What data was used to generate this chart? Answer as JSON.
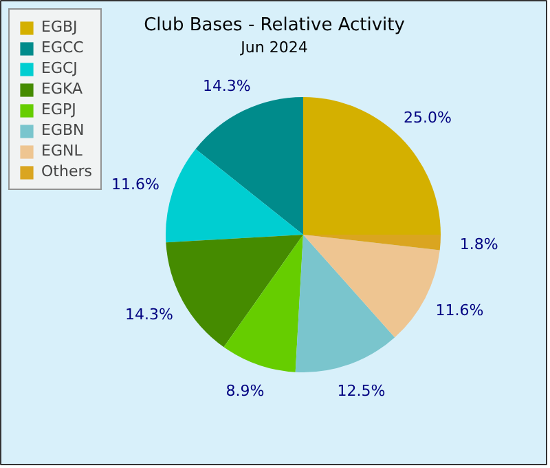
{
  "chart_data": {
    "type": "pie",
    "title": "Club Bases - Relative Activity",
    "subtitle": "Jun 2024",
    "categories": [
      "EGBJ",
      "EGCC",
      "EGCJ",
      "EGKA",
      "EGPJ",
      "EGBN",
      "EGNL",
      "Others"
    ],
    "values": [
      25.0,
      14.3,
      11.6,
      14.3,
      8.9,
      12.5,
      11.6,
      1.8
    ],
    "colors": [
      "#d4b000",
      "#008b8b",
      "#00ced1",
      "#458b00",
      "#66cd00",
      "#7ac5cd",
      "#eec591",
      "#daa520"
    ],
    "value_labels": [
      "25.0%",
      "14.3%",
      "11.6%",
      "14.3%",
      "8.9%",
      "12.5%",
      "11.6%",
      "1.8%"
    ],
    "legend": "top left"
  }
}
